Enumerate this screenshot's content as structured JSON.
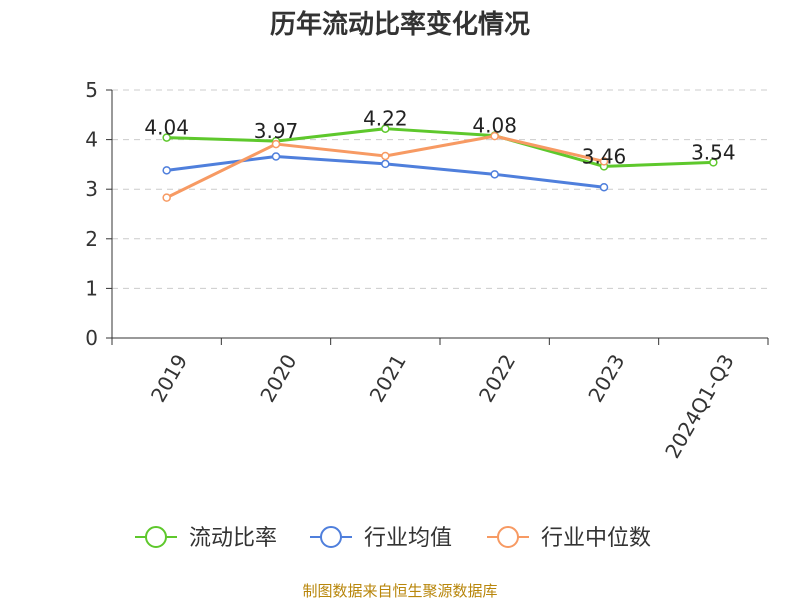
{
  "title": "历年流动比率变化情况",
  "source": "制图数据来自恒生聚源数据库",
  "chart_data": {
    "type": "line",
    "title": "历年流动比率变化情况",
    "categories": [
      "2019",
      "2020",
      "2021",
      "2022",
      "2023",
      "2024Q1-Q3"
    ],
    "ylim": [
      0,
      5
    ],
    "yticks": [
      0,
      1,
      2,
      3,
      4,
      5
    ],
    "grid": true,
    "legend_position": "bottom",
    "series": [
      {
        "name": "流动比率",
        "color": "#5ec82c",
        "values": [
          4.04,
          3.97,
          4.22,
          4.08,
          3.46,
          3.54
        ],
        "labels": [
          "4.04",
          "3.97",
          "4.22",
          "4.08",
          "3.46",
          "3.54"
        ]
      },
      {
        "name": "行业均值",
        "color": "#4f7fdc",
        "values": [
          3.38,
          3.66,
          3.51,
          3.3,
          3.04,
          null
        ]
      },
      {
        "name": "行业中位数",
        "color": "#f79a63",
        "values": [
          2.83,
          3.91,
          3.67,
          4.07,
          3.56,
          null
        ]
      }
    ]
  }
}
